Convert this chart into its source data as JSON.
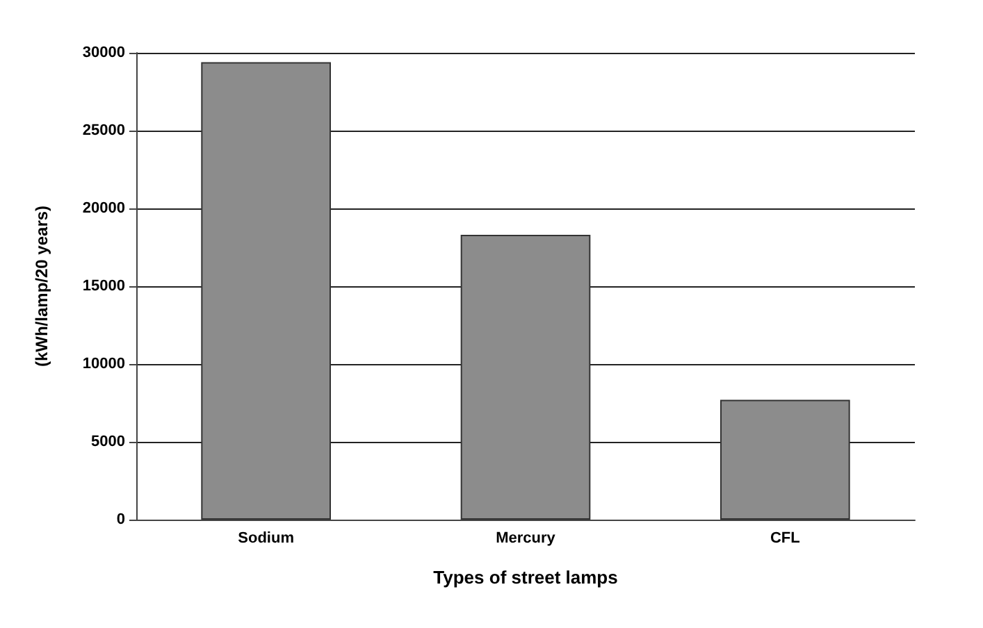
{
  "chart_data": {
    "type": "bar",
    "xlabel": "Types of street lamps",
    "ylabel": "(kWh/lamp/20 years)",
    "categories": [
      "Sodium",
      "Mercury",
      "CFL"
    ],
    "values": [
      29400,
      18300,
      7700
    ],
    "color": "#8c8c8c",
    "ylim": [
      0,
      30000
    ],
    "yticks": [
      0,
      5000,
      10000,
      15000,
      20000,
      25000,
      30000
    ],
    "grid": "y"
  }
}
